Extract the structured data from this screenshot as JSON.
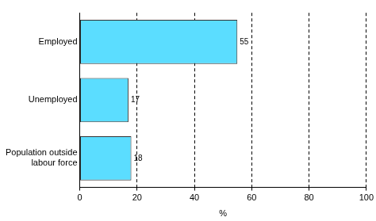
{
  "chart_data": {
    "type": "bar",
    "orientation": "horizontal",
    "categories": [
      "Employed",
      "Unemployed",
      "Population outside labour force"
    ],
    "values": [
      55,
      17,
      18
    ],
    "color": "#5bddff",
    "xlabel": "%",
    "xlim": [
      0,
      100
    ],
    "xticks": [
      0,
      20,
      40,
      60,
      80,
      100
    ],
    "grid": true,
    "data_labels": true
  }
}
